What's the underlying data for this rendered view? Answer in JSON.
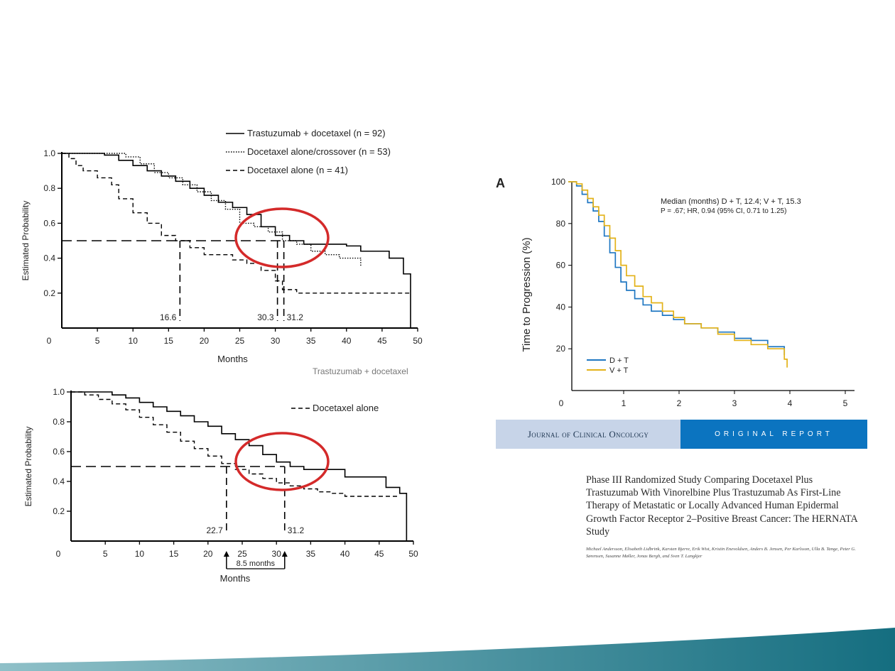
{
  "colors": {
    "black": "#000000",
    "red_circle": "#d42a2a",
    "dt_blue": "#1f77c2",
    "vt_gold": "#e3b219",
    "banner_light": "#c7d4e8",
    "banner_dark": "#0b74c0",
    "band_start": "#8fc0c8",
    "band_end": "#156e80"
  },
  "chart_data": [
    {
      "type": "line",
      "ylabel": "Estimated Probability",
      "xlabel": "Months",
      "xlim": [
        0,
        50
      ],
      "ylim": [
        0,
        1.0
      ],
      "xticks": [
        "0",
        "5",
        "10",
        "15",
        "20",
        "25",
        "30",
        "35",
        "40",
        "45",
        "50"
      ],
      "yticks": [
        "0.2",
        "0.4",
        "0.6",
        "0.8",
        "1.0"
      ],
      "series": [
        {
          "name": "Trastuzumab + docetaxel (n = 92)",
          "style": "solid",
          "x": [
            0,
            3,
            6,
            8,
            10,
            12,
            14,
            16,
            18,
            20,
            22,
            24,
            26,
            28,
            30,
            32,
            34,
            36,
            38,
            40,
            42,
            46,
            48,
            49
          ],
          "y": [
            1.0,
            1.0,
            0.99,
            0.96,
            0.93,
            0.9,
            0.87,
            0.84,
            0.8,
            0.76,
            0.72,
            0.69,
            0.65,
            0.58,
            0.53,
            0.5,
            0.48,
            0.48,
            0.48,
            0.47,
            0.44,
            0.4,
            0.31,
            0.0
          ]
        },
        {
          "name": "Docetaxel alone/crossover (n = 53)",
          "style": "dotted",
          "x": [
            0,
            3,
            6,
            9,
            11,
            13,
            15,
            17,
            19,
            21,
            23,
            25,
            27,
            29,
            31,
            33,
            35,
            37,
            39,
            42
          ],
          "y": [
            1.0,
            1.0,
            1.0,
            0.98,
            0.94,
            0.89,
            0.86,
            0.82,
            0.78,
            0.73,
            0.68,
            0.6,
            0.58,
            0.55,
            0.5,
            0.48,
            0.44,
            0.42,
            0.4,
            0.35
          ]
        },
        {
          "name": "Docetaxel alone (n = 41)",
          "style": "dashed",
          "x": [
            0,
            1,
            2,
            3,
            5,
            7,
            8,
            10,
            12,
            14,
            16,
            18,
            20,
            22,
            24,
            26,
            28,
            30,
            31,
            33,
            49
          ],
          "y": [
            1.0,
            0.97,
            0.93,
            0.9,
            0.86,
            0.82,
            0.74,
            0.66,
            0.6,
            0.53,
            0.5,
            0.46,
            0.42,
            0.42,
            0.39,
            0.37,
            0.33,
            0.27,
            0.22,
            0.2,
            0.2
          ]
        }
      ],
      "median_line_y": 0.5,
      "medians": [
        {
          "x": 16.6,
          "label": "16.6"
        },
        {
          "x": 30.3,
          "label": "30.3"
        },
        {
          "x": 31.2,
          "label": "31.2"
        }
      ]
    },
    {
      "type": "line",
      "ylabel": "Estimated Probability",
      "xlabel": "Months",
      "xlim": [
        0,
        50
      ],
      "ylim": [
        0,
        1.0
      ],
      "xticks": [
        "0",
        "5",
        "10",
        "15",
        "20",
        "25",
        "30",
        "35",
        "40",
        "45",
        "50"
      ],
      "yticks": [
        "0.2",
        "0.4",
        "0.6",
        "0.8",
        "1.0"
      ],
      "series": [
        {
          "name": "Trastuzumab + docetaxel",
          "style": "solid",
          "x": [
            0,
            3,
            6,
            8,
            10,
            12,
            14,
            16,
            18,
            20,
            22,
            24,
            26,
            28,
            30,
            32,
            34,
            38,
            40,
            46,
            48,
            49
          ],
          "y": [
            1.0,
            1.0,
            0.98,
            0.96,
            0.93,
            0.9,
            0.87,
            0.84,
            0.8,
            0.77,
            0.72,
            0.68,
            0.64,
            0.58,
            0.53,
            0.5,
            0.48,
            0.48,
            0.43,
            0.36,
            0.32,
            0.0
          ]
        },
        {
          "name": "Docetaxel alone",
          "style": "dashed",
          "x": [
            0,
            2,
            4,
            6,
            8,
            10,
            12,
            14,
            16,
            18,
            20,
            22,
            24,
            26,
            28,
            30,
            32,
            34,
            36,
            38,
            40,
            42,
            46,
            48
          ],
          "y": [
            1.0,
            0.98,
            0.95,
            0.92,
            0.88,
            0.83,
            0.78,
            0.73,
            0.67,
            0.62,
            0.57,
            0.52,
            0.48,
            0.45,
            0.42,
            0.39,
            0.37,
            0.35,
            0.33,
            0.32,
            0.3,
            0.3,
            0.3,
            0.3
          ]
        }
      ],
      "median_line_y": 0.5,
      "medians": [
        {
          "x": 22.7,
          "label": "22.7"
        },
        {
          "x": 31.2,
          "label": "31.2"
        }
      ],
      "annotation": "8.5 months"
    },
    {
      "panel_label": "A",
      "type": "line",
      "ylabel": "Time to Progression (%)",
      "xlabel": "",
      "xlim": [
        0,
        5
      ],
      "ylim": [
        0,
        100
      ],
      "xticks": [
        "0",
        "1",
        "2",
        "3",
        "4",
        "5"
      ],
      "yticks": [
        "20",
        "40",
        "60",
        "80",
        "100"
      ],
      "annotation_line1": "Median (months) D + T, 12.4; V + T, 15.3",
      "annotation_line2": "P = .67; HR, 0.94 (95% CI, 0.71 to 1.25)",
      "series": [
        {
          "name": "D + T",
          "x": [
            0,
            0.15,
            0.25,
            0.35,
            0.45,
            0.55,
            0.65,
            0.75,
            0.85,
            0.95,
            1.05,
            1.2,
            1.35,
            1.5,
            1.7,
            1.9,
            2.1,
            2.4,
            2.7,
            3.0,
            3.3,
            3.6,
            3.9
          ],
          "y": [
            100,
            98,
            94,
            90,
            86,
            81,
            74,
            66,
            59,
            52,
            48,
            44,
            41,
            38,
            36,
            34,
            32,
            30,
            28,
            25,
            24,
            21,
            17
          ]
        },
        {
          "name": "V + T",
          "x": [
            0,
            0.15,
            0.25,
            0.35,
            0.45,
            0.55,
            0.65,
            0.75,
            0.85,
            0.95,
            1.05,
            1.2,
            1.35,
            1.5,
            1.7,
            1.9,
            2.1,
            2.4,
            2.7,
            3.0,
            3.3,
            3.6,
            3.9,
            3.95
          ],
          "y": [
            100,
            99,
            96,
            92,
            88,
            84,
            79,
            73,
            67,
            60,
            55,
            50,
            45,
            42,
            38,
            35,
            32,
            30,
            27,
            24,
            22,
            20,
            15,
            11
          ]
        }
      ]
    }
  ],
  "banner": {
    "journal": "Journal of Clinical Oncology",
    "section": "ORIGINAL REPORT"
  },
  "paper": {
    "title": "Phase III Randomized Study Comparing Docetaxel Plus Trastuzumab With Vinorelbine Plus Trastuzumab As First-Line Therapy of Metastatic or Locally Advanced Human Epidermal Growth Factor Receptor 2–Positive Breast Cancer: The HERNATA Study",
    "authors": "Michael Andersson, Elisabeth Lidbrink, Karsten Bjerre, Erik Wist, Kristin Enevoldsen, Anders B. Jensen, Per Karlsson, Ulla B. Tange, Peter G. Sørensen, Susanne Møller, Jonas Bergh, and Sven T. Langkjer"
  }
}
